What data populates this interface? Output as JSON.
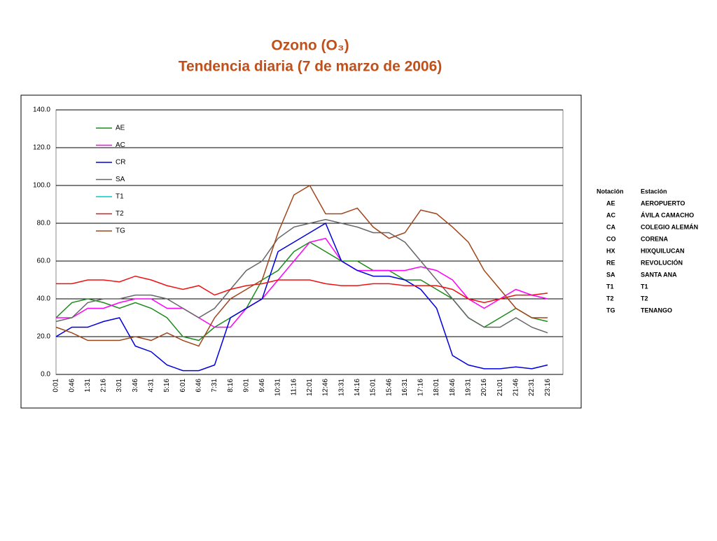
{
  "chart_data": {
    "type": "line",
    "title": "Ozono (O₃)",
    "subtitle": "Tendencia diaria (7 de marzo de 2006)",
    "categories": [
      "0:01",
      "0:46",
      "1:31",
      "2:16",
      "3:01",
      "3:46",
      "4:31",
      "5:16",
      "6:01",
      "6:46",
      "7:31",
      "8:16",
      "9:01",
      "9:46",
      "10:31",
      "11:16",
      "12:01",
      "12:46",
      "13:31",
      "14:16",
      "15:01",
      "15:46",
      "16:31",
      "17:16",
      "18:01",
      "18:46",
      "19:31",
      "20:16",
      "21:01",
      "21:46",
      "22:31",
      "23:16"
    ],
    "ylim": [
      0,
      140
    ],
    "yticks": [
      {
        "value": 0,
        "label": "0.0"
      },
      {
        "value": 20,
        "label": "20.0"
      },
      {
        "value": 40,
        "label": "40.0"
      },
      {
        "value": 60,
        "label": "60.0"
      },
      {
        "value": 80,
        "label": "80.0"
      },
      {
        "value": 100,
        "label": "100.0"
      },
      {
        "value": 120,
        "label": "120.0"
      },
      {
        "value": 140,
        "label": "140.0"
      }
    ],
    "grid": true,
    "legend": "top-left",
    "series": [
      {
        "name": "AE",
        "color": "#1a8c1a",
        "values": [
          30,
          38,
          40,
          38,
          35,
          38,
          35,
          30,
          20,
          18,
          25,
          30,
          35,
          50,
          55,
          65,
          70,
          65,
          60,
          60,
          55,
          55,
          50,
          50,
          45,
          40,
          30,
          25,
          30,
          35,
          30,
          28
        ]
      },
      {
        "name": "AC",
        "color": "#ff00ff",
        "values": [
          30,
          30,
          35,
          35,
          38,
          40,
          40,
          35,
          35,
          30,
          25,
          25,
          35,
          40,
          50,
          60,
          70,
          72,
          60,
          55,
          55,
          55,
          55,
          57,
          55,
          50,
          40,
          35,
          40,
          45,
          42,
          40
        ]
      },
      {
        "name": "CR",
        "color": "#0000dd",
        "values": [
          20,
          25,
          25,
          28,
          30,
          15,
          12,
          5,
          2,
          2,
          5,
          30,
          35,
          40,
          65,
          70,
          75,
          80,
          60,
          55,
          52,
          52,
          50,
          45,
          35,
          10,
          5,
          3,
          3,
          4,
          3,
          5
        ]
      },
      {
        "name": "SA",
        "color": "#666666",
        "values": [
          28,
          30,
          38,
          40,
          40,
          42,
          42,
          40,
          35,
          30,
          35,
          45,
          55,
          60,
          72,
          78,
          80,
          82,
          80,
          78,
          75,
          75,
          70,
          60,
          50,
          40,
          30,
          25,
          25,
          30,
          25,
          22
        ]
      },
      {
        "name": "T1",
        "color": "#00cccc",
        "values": [
          null,
          null,
          null,
          null,
          null,
          null,
          null,
          null,
          null,
          null,
          null,
          null,
          null,
          null,
          null,
          null,
          null,
          null,
          null,
          null,
          null,
          null,
          null,
          null,
          null,
          null,
          null,
          null,
          null,
          null,
          null,
          null
        ]
      },
      {
        "name": "T2",
        "color": "#ee1111",
        "values": [
          48,
          48,
          50,
          50,
          49,
          52,
          50,
          47,
          45,
          47,
          42,
          45,
          47,
          48,
          50,
          50,
          50,
          48,
          47,
          47,
          48,
          48,
          47,
          47,
          47,
          45,
          40,
          38,
          40,
          42,
          42,
          43
        ]
      },
      {
        "name": "TG",
        "color": "#a0461a",
        "values": [
          25,
          22,
          18,
          18,
          18,
          20,
          18,
          22,
          18,
          15,
          30,
          40,
          45,
          50,
          75,
          95,
          100,
          85,
          85,
          88,
          78,
          72,
          75,
          87,
          85,
          78,
          70,
          55,
          45,
          35,
          30,
          30
        ]
      }
    ]
  },
  "table": {
    "header": [
      "Notación",
      "Estación"
    ],
    "rows": [
      [
        "AE",
        "AEROPUERTO"
      ],
      [
        "AC",
        "ÁVILA CAMACHO"
      ],
      [
        "CA",
        "COLEGIO ALEMÁN"
      ],
      [
        "CO",
        "CORENA"
      ],
      [
        "HX",
        "HIXQUILUCAN"
      ],
      [
        "RE",
        "REVOLUCIÓN"
      ],
      [
        "SA",
        "SANTA ANA"
      ],
      [
        "T1",
        "T1"
      ],
      [
        "T2",
        "T2"
      ],
      [
        "TG",
        "TENANGO"
      ]
    ]
  }
}
